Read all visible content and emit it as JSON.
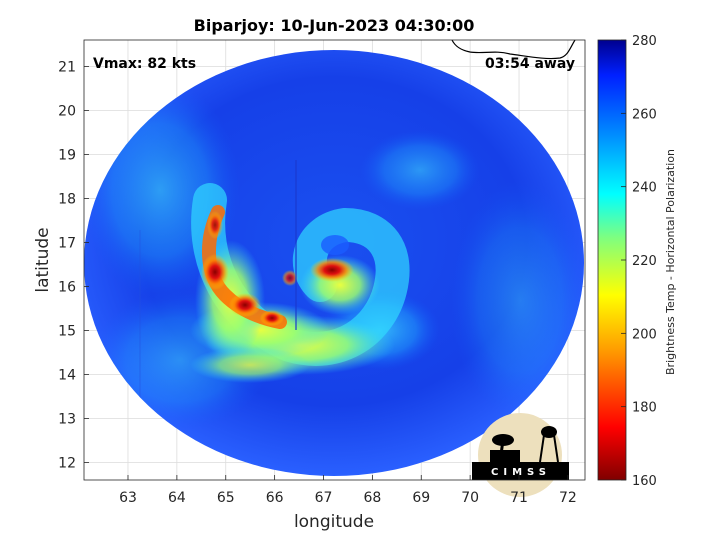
{
  "title": "Biparjoy: 10-Jun-2023 04:30:00",
  "annotations": {
    "vmax": "Vmax: 82 kts",
    "time_away": "03:54 away"
  },
  "axes": {
    "xlabel": "longitude",
    "ylabel": "latitude",
    "xlim": [
      62.1,
      72.35
    ],
    "ylim": [
      11.6,
      21.6
    ],
    "xticks": [
      "63",
      "64",
      "65",
      "66",
      "67",
      "68",
      "69",
      "70",
      "71",
      "72"
    ],
    "yticks": [
      "12",
      "13",
      "14",
      "15",
      "16",
      "17",
      "18",
      "19",
      "20",
      "21"
    ]
  },
  "colorbar": {
    "label": "Brightness Temp - Horizontal Polarization",
    "range": [
      160,
      280
    ],
    "ticks": [
      "160",
      "180",
      "200",
      "220",
      "240",
      "260",
      "280"
    ]
  },
  "logo": {
    "text": "CIMSS"
  },
  "chart_data": {
    "type": "heatmap",
    "title": "Biparjoy: 10-Jun-2023 04:30:00",
    "xlabel": "longitude",
    "ylabel": "latitude",
    "xlim": [
      62.1,
      72.35
    ],
    "ylim": [
      11.6,
      21.6
    ],
    "colorbar_label": "Brightness Temp - Horizontal Polarization",
    "colorbar_range": [
      160,
      280
    ],
    "colormap": "jet",
    "grid": true,
    "swath_center": [
      67.1,
      16.4
    ],
    "storm_center": [
      67.2,
      16.6
    ],
    "features": [
      {
        "name": "outer band",
        "lon": 64.7,
        "lat": 16.1,
        "value": 170
      },
      {
        "name": "eyewall",
        "lon": 67.2,
        "lat": 16.4,
        "value": 172
      },
      {
        "name": "rainband south",
        "lon": 66.0,
        "lat": 14.9,
        "value": 205
      },
      {
        "name": "background",
        "lon": 67.0,
        "lat": 19.0,
        "value": 265
      }
    ]
  }
}
